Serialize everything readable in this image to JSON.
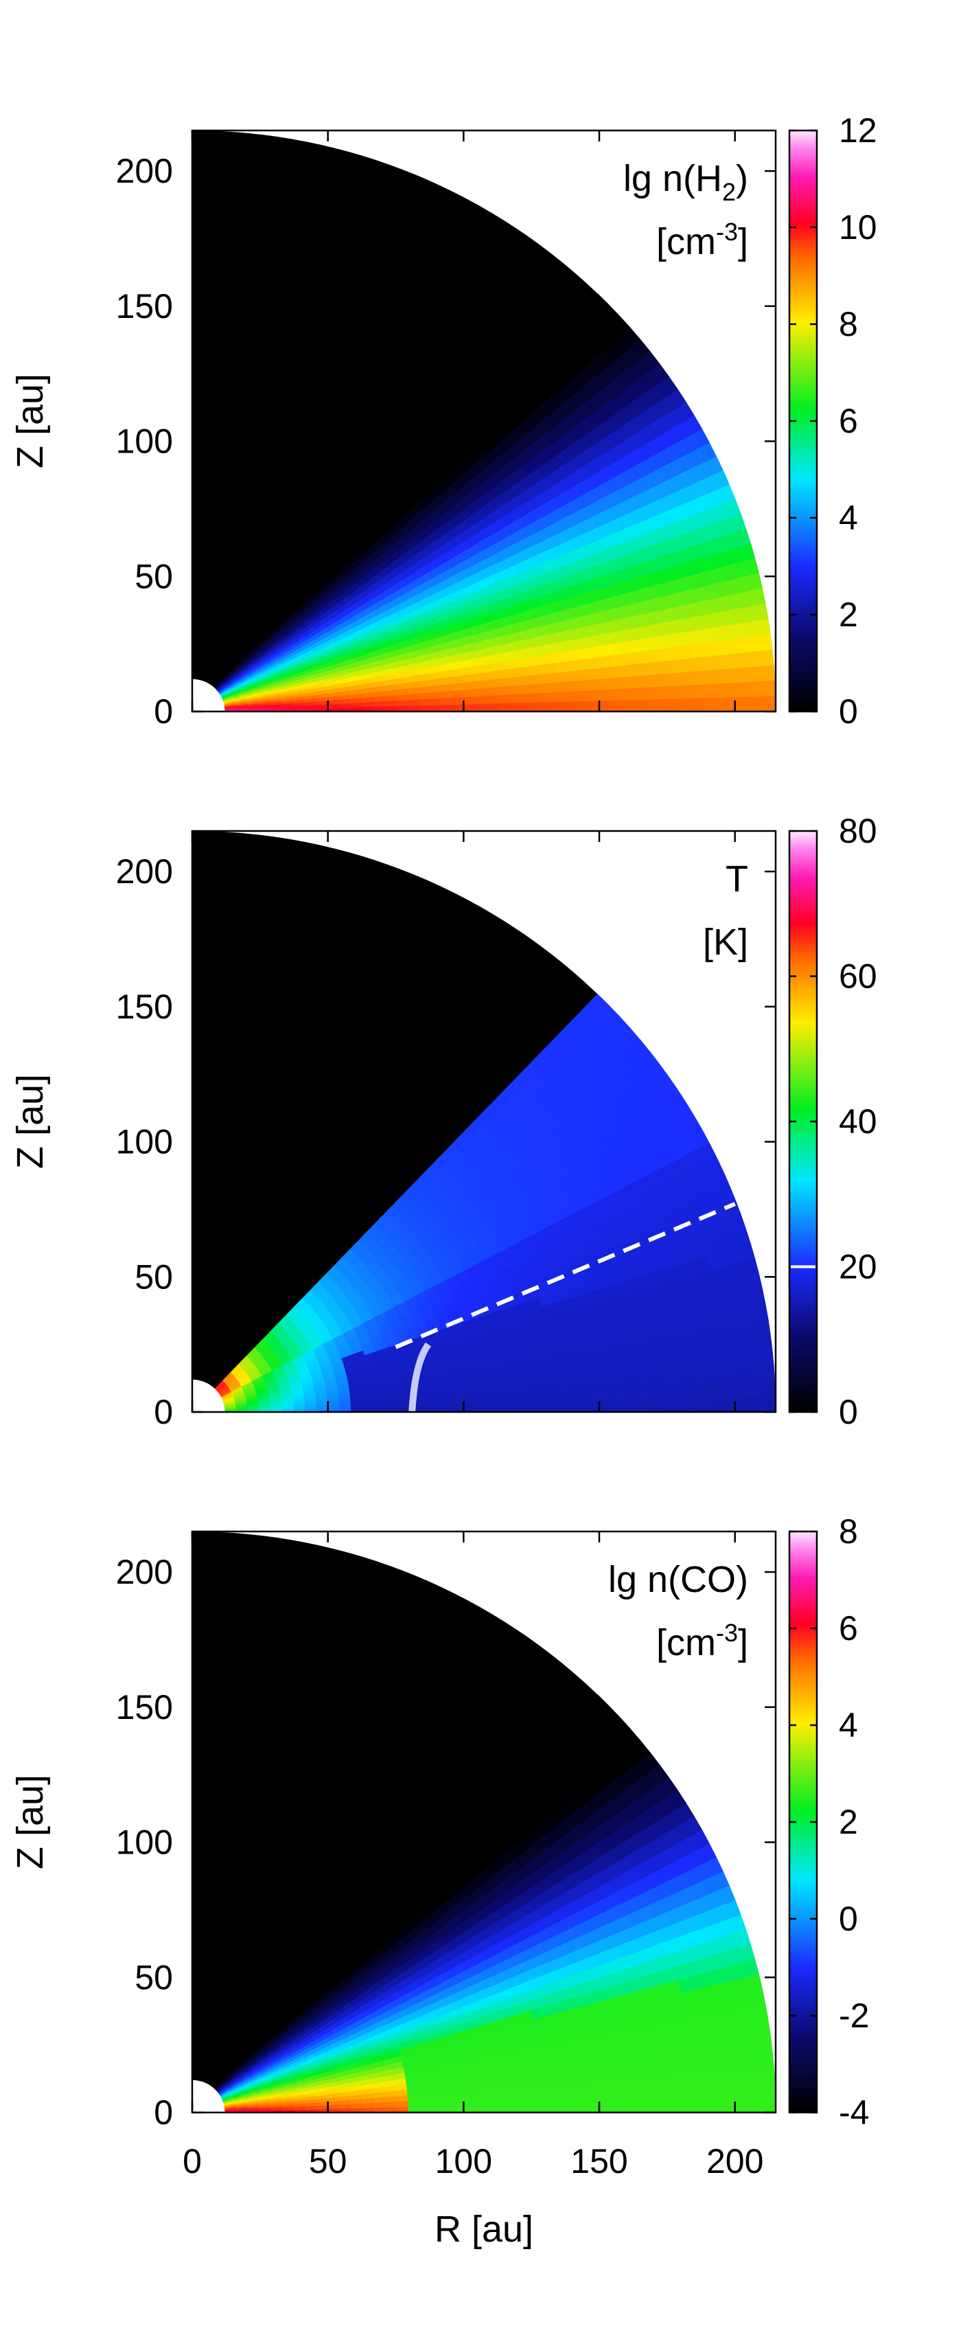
{
  "chart_data": [
    {
      "type": "heatmap",
      "panel": "top",
      "ylabel": "Z [au]",
      "xlabel": "",
      "xlim": [
        0,
        215
      ],
      "ylim": [
        0,
        215
      ],
      "xticks": [
        0,
        50,
        100,
        150,
        200
      ],
      "yticks": [
        0,
        50,
        100,
        150,
        200
      ],
      "show_xtick_labels": false,
      "quantity_line1": "lg n(H",
      "quantity_sub": "2",
      "quantity_line1_end": ")",
      "quantity_line2": "[cm",
      "quantity_sup": "-3",
      "quantity_line2_end": "]",
      "colorbar": {
        "min": 0,
        "max": 12,
        "ticks": [
          0,
          2,
          4,
          6,
          8,
          10,
          12
        ],
        "tick_labels": [
          "0",
          "2",
          "4",
          "6",
          "8",
          "10",
          "12"
        ]
      },
      "outer_radius_au": 215,
      "inner_radius_au": 12,
      "disk_opening_angle_deg": 46,
      "field": "density_h2"
    },
    {
      "type": "heatmap",
      "panel": "middle",
      "ylabel": "Z [au]",
      "xlabel": "",
      "xlim": [
        0,
        215
      ],
      "ylim": [
        0,
        215
      ],
      "xticks": [
        0,
        50,
        100,
        150,
        200
      ],
      "yticks": [
        0,
        50,
        100,
        150,
        200
      ],
      "show_xtick_labels": false,
      "quantity_line1": "T",
      "quantity_sub": "",
      "quantity_line1_end": "",
      "quantity_line2": "[K]",
      "quantity_sup": "",
      "quantity_line2_end": "",
      "colorbar": {
        "min": 0,
        "max": 80,
        "ticks": [
          0,
          20,
          40,
          60,
          80
        ],
        "tick_labels": [
          "0",
          "20",
          "40",
          "60",
          "80"
        ],
        "marker_value": 20
      },
      "outer_radius_au": 215,
      "inner_radius_au": 12,
      "disk_opening_angle_deg": 46,
      "field": "temperature"
    },
    {
      "type": "heatmap",
      "panel": "bottom",
      "ylabel": "Z [au]",
      "xlabel": "R [au]",
      "xlim": [
        0,
        215
      ],
      "ylim": [
        0,
        215
      ],
      "xticks": [
        0,
        50,
        100,
        150,
        200
      ],
      "yticks": [
        0,
        50,
        100,
        150,
        200
      ],
      "show_xtick_labels": true,
      "quantity_line1": "lg n(CO)",
      "quantity_sub": "",
      "quantity_line1_end": "",
      "quantity_line2": "[cm",
      "quantity_sup": "-3",
      "quantity_line2_end": "]",
      "colorbar": {
        "min": -4,
        "max": 8,
        "ticks": [
          -4,
          -2,
          0,
          2,
          4,
          6,
          8
        ],
        "tick_labels": [
          "-4",
          "-2",
          "0",
          "2",
          "4",
          "6",
          "8"
        ]
      },
      "outer_radius_au": 215,
      "inner_radius_au": 12,
      "disk_opening_angle_deg": 46,
      "field": "density_co"
    }
  ]
}
